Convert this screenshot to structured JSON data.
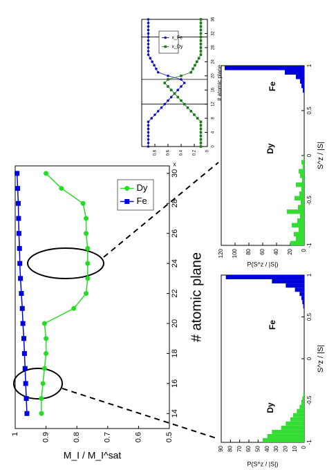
{
  "chart_data": [
    {
      "type": "line",
      "x_label": "# atomic plane",
      "y_label": "M_I / M_I^sat",
      "x": [
        14,
        15,
        16,
        17,
        18,
        19,
        20,
        21,
        22,
        23,
        24,
        25,
        26,
        27,
        28,
        29,
        30
      ],
      "xlim": [
        13,
        30.5
      ],
      "xticks": [
        14,
        16,
        18,
        20,
        22,
        24,
        26,
        28,
        30
      ],
      "ylim": [
        0.5,
        1
      ],
      "yticks": [
        0.5,
        0.6,
        0.7,
        0.8,
        0.9,
        1
      ],
      "legend": "upper right",
      "series": [
        {
          "name": "Dy",
          "color": "#22dd22",
          "marker": "circle",
          "values": [
            0.915,
            0.915,
            0.91,
            0.905,
            0.9,
            0.9,
            0.905,
            0.81,
            0.77,
            0.765,
            0.765,
            0.765,
            0.77,
            0.77,
            0.78,
            0.85,
            0.9
          ]
        },
        {
          "name": "Fe",
          "color": "#0000dd",
          "marker": "square",
          "values": [
            0.962,
            0.964,
            0.966,
            0.968,
            0.97,
            0.972,
            0.975,
            0.977,
            0.98,
            0.983,
            0.985,
            0.986,
            0.988,
            0.989,
            0.99,
            0.992,
            0.994
          ]
        }
      ]
    },
    {
      "type": "histogram",
      "x_label": "S^z / |S|",
      "y_label": "P(S^z / |S|)",
      "bins": [
        -1,
        -0.95,
        -0.9,
        -0.85,
        -0.8,
        -0.75,
        -0.7,
        -0.65,
        -0.6,
        -0.55,
        -0.5,
        -0.45,
        -0.4,
        -0.35,
        -0.3,
        -0.25,
        -0.2,
        -0.15,
        -0.1,
        -0.05,
        0,
        0.05,
        0.1,
        0.15,
        0.2,
        0.25,
        0.3,
        0.35,
        0.4,
        0.45,
        0.5,
        0.55,
        0.6,
        0.65,
        0.7,
        0.75,
        0.8,
        0.85,
        0.9,
        0.95,
        1
      ],
      "xlim": [
        -1,
        1
      ],
      "xticks": [
        -1,
        -0.5,
        0,
        0.5,
        1
      ],
      "ylim": [
        0,
        120
      ],
      "yticks": [
        0,
        20,
        40,
        60,
        80,
        100,
        120
      ],
      "series": [
        {
          "name": "Dy",
          "color": "#33dd33",
          "values": [
            20,
            12,
            15,
            8,
            18,
            10,
            6,
            25,
            9,
            5,
            14,
            7,
            4,
            12,
            3,
            6,
            8,
            2,
            4,
            1,
            0,
            0,
            0,
            0,
            0,
            0,
            0,
            0,
            0,
            0,
            0,
            0,
            0,
            0,
            0,
            0,
            0,
            0,
            0,
            0
          ]
        },
        {
          "name": "Fe",
          "color": "#0000dd",
          "values": [
            0,
            0,
            0,
            0,
            0,
            0,
            0,
            0,
            0,
            0,
            0,
            0,
            0,
            0,
            0,
            0,
            0,
            0,
            0,
            0,
            0,
            0,
            0,
            0,
            0,
            0,
            0,
            0,
            0,
            0,
            0,
            0,
            0,
            0,
            2,
            4,
            6,
            12,
            28,
            115
          ]
        }
      ]
    },
    {
      "type": "histogram",
      "x_label": "S^z / |S|",
      "y_label": "P(S^z / |S|)",
      "bins": [
        -1,
        -0.95,
        -0.9,
        -0.85,
        -0.8,
        -0.75,
        -0.7,
        -0.65,
        -0.6,
        -0.55,
        -0.5,
        -0.45,
        -0.4,
        -0.35,
        -0.3,
        -0.25,
        -0.2,
        -0.15,
        -0.1,
        -0.05,
        0,
        0.05,
        0.1,
        0.15,
        0.2,
        0.25,
        0.3,
        0.35,
        0.4,
        0.45,
        0.5,
        0.55,
        0.6,
        0.65,
        0.7,
        0.75,
        0.8,
        0.85,
        0.9,
        0.95,
        1
      ],
      "xlim": [
        -1,
        1
      ],
      "xticks": [
        -1,
        -0.5,
        0,
        0.5,
        1
      ],
      "ylim": [
        0,
        90
      ],
      "yticks": [
        0,
        10,
        20,
        30,
        40,
        50,
        60,
        70,
        80,
        90
      ],
      "series": [
        {
          "name": "Dy",
          "color": "#33dd33",
          "values": [
            45,
            40,
            35,
            25,
            20,
            15,
            12,
            8,
            5,
            3,
            2,
            1,
            0,
            0,
            0,
            0,
            0,
            0,
            0,
            0,
            0,
            0,
            0,
            0,
            0,
            0,
            0,
            0,
            0,
            0,
            0,
            0,
            0,
            0,
            0,
            0,
            0,
            0,
            0,
            0
          ]
        },
        {
          "name": "Fe",
          "color": "#0000dd",
          "values": [
            0,
            0,
            0,
            0,
            0,
            0,
            0,
            0,
            0,
            0,
            0,
            0,
            0,
            0,
            0,
            0,
            0,
            0,
            0,
            0,
            0,
            0,
            0,
            0,
            0,
            0,
            0,
            0,
            0,
            0,
            0,
            0,
            1,
            2,
            3,
            5,
            10,
            20,
            35,
            85
          ]
        }
      ]
    },
    {
      "type": "line",
      "x_label": "# atomic plane",
      "y_label": "x",
      "x": [
        0,
        1,
        2,
        3,
        4,
        5,
        6,
        7,
        8,
        9,
        10,
        11,
        12,
        13,
        14,
        15,
        16,
        17,
        18,
        19,
        20,
        21,
        22,
        23,
        24,
        25,
        26,
        27,
        28,
        29,
        30,
        31,
        32,
        33,
        34,
        35,
        36
      ],
      "xlim": [
        0,
        36
      ],
      "xticks": [
        0,
        4,
        8,
        12,
        16,
        20,
        24,
        28,
        32,
        36
      ],
      "ylim": [
        0,
        1
      ],
      "yticks": [
        0,
        0.2,
        0.4,
        0.6,
        0.8
      ],
      "vlines": [
        12,
        19,
        31
      ],
      "legend": "upper left",
      "series": [
        {
          "name": "x_Fe",
          "color": "#1010c0",
          "marker": "circle",
          "values": [
            0.9,
            0.9,
            0.9,
            0.9,
            0.9,
            0.9,
            0.9,
            0.9,
            0.85,
            0.8,
            0.75,
            0.7,
            0.65,
            0.6,
            0.55,
            0.5,
            0.45,
            0.4,
            0.35,
            0.4,
            0.6,
            0.75,
            0.78,
            0.81,
            0.84,
            0.87,
            0.9,
            0.9,
            0.9,
            0.9,
            0.9,
            0.9,
            0.9,
            0.9,
            0.9,
            0.9,
            0.9
          ]
        },
        {
          "name": "x_Dy",
          "color": "#1a7a1a",
          "marker": "square",
          "values": [
            0.1,
            0.1,
            0.1,
            0.1,
            0.1,
            0.1,
            0.1,
            0.1,
            0.15,
            0.2,
            0.25,
            0.3,
            0.35,
            0.4,
            0.45,
            0.5,
            0.55,
            0.6,
            0.65,
            0.6,
            0.4,
            0.25,
            0.22,
            0.19,
            0.16,
            0.13,
            0.1,
            0.1,
            0.1,
            0.1,
            0.1,
            0.1,
            0.1,
            0.1,
            0.1,
            0.1,
            0.1
          ]
        }
      ]
    }
  ]
}
